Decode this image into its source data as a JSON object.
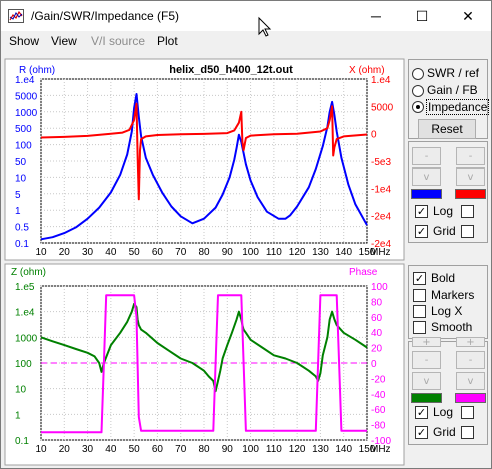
{
  "window": {
    "title": "/Gain/SWR/Impedance (F5)",
    "minimize_glyph": "─",
    "maximize_glyph": "☐",
    "close_glyph": "✕"
  },
  "menu": [
    "Show",
    "View",
    "V/I source",
    "Plot"
  ],
  "top_plot": {
    "title": "helix_d50_h400_12t.out",
    "left_label": "R (ohm)",
    "right_label": "X (ohm)",
    "left_ticks": [
      "1.e4",
      "5000",
      "1000",
      "500",
      "100",
      "50",
      "10",
      "5",
      "1",
      "0.5",
      "0.1"
    ],
    "right_ticks": [
      "1.e4",
      "5000",
      "0",
      "-5e3",
      "-1e4",
      "-2e4",
      "-2e4"
    ],
    "x_ticks": [
      "10",
      "20",
      "30",
      "40",
      "50",
      "60",
      "70",
      "80",
      "90",
      "100",
      "110",
      "120",
      "130",
      "140",
      "150"
    ],
    "x_unit": "MHz"
  },
  "bottom_plot": {
    "left_label": "Z (ohm)",
    "right_label": "Phase",
    "left_ticks": [
      "1.e5",
      "1.e4",
      "1000",
      "100",
      "10",
      "1",
      "0.1"
    ],
    "right_ticks": [
      "100",
      "80",
      "60",
      "40",
      "20",
      "0",
      "-20",
      "-40",
      "-60",
      "-80",
      "-100"
    ],
    "x_ticks": [
      "10",
      "20",
      "30",
      "40",
      "50",
      "60",
      "70",
      "80",
      "90",
      "100",
      "110",
      "120",
      "130",
      "140",
      "150"
    ],
    "x_unit": "MHz"
  },
  "panel_top": {
    "radios": [
      {
        "label": "SWR / ref",
        "selected": false
      },
      {
        "label": "Gain / FB",
        "selected": false
      },
      {
        "label": "Impedance",
        "selected": true
      }
    ],
    "reset_label": "Reset",
    "log_label": "Log",
    "grid_label": "Grid",
    "log_checked": true,
    "log2_checked": false,
    "grid_checked": true,
    "grid2_checked": false,
    "swatch_left_color": "#0000ff",
    "swatch_right_color": "#ff0000"
  },
  "panel_bottom": {
    "options": [
      {
        "label": "Bold",
        "checked": true
      },
      {
        "label": "Markers",
        "checked": false
      },
      {
        "label": "Log X",
        "checked": false
      },
      {
        "label": "Smooth",
        "checked": false
      }
    ],
    "log_label": "Log",
    "grid_label": "Grid",
    "log_checked": true,
    "log2_checked": false,
    "grid_checked": true,
    "grid2_checked": false,
    "swatch_left_color": "#008000",
    "swatch_right_color": "#ff00ff"
  },
  "stepper_glyphs": {
    "up": "-",
    "down": "v",
    "plus": "+"
  },
  "chart_data": [
    {
      "type": "line",
      "title": "helix_d50_h400_12t.out",
      "xlabel": "MHz",
      "ylabel": "R (ohm)",
      "y2label": "X (ohm)",
      "xlim": [
        10,
        150
      ],
      "ylim": [
        0.1,
        10000
      ],
      "y_scale": "log",
      "y2lim": [
        -20000,
        10000
      ],
      "grid": true,
      "series": [
        {
          "name": "R (ohm)",
          "axis": "left",
          "color": "#0000ff",
          "x": [
            10,
            15,
            20,
            25,
            30,
            35,
            40,
            44,
            47,
            49,
            50,
            51,
            52,
            53,
            55,
            58,
            62,
            66,
            70,
            75,
            80,
            85,
            88,
            91,
            93,
            94,
            95,
            96,
            97,
            98,
            100,
            103,
            107,
            112,
            115,
            117,
            120,
            125,
            128,
            131,
            133,
            134,
            135,
            136,
            137,
            139,
            142,
            145,
            150
          ],
          "y": [
            0.13,
            0.15,
            0.2,
            0.3,
            0.55,
            1.2,
            3.5,
            12,
            50,
            250,
            1300,
            3500,
            700,
            180,
            40,
            12,
            3.5,
            1.3,
            0.65,
            0.4,
            0.55,
            1.2,
            3,
            10,
            35,
            80,
            200,
            120,
            55,
            25,
            8,
            2.5,
            0.9,
            0.55,
            0.55,
            0.7,
            1.3,
            5,
            18,
            90,
            350,
            1000,
            2000,
            800,
            250,
            40,
            6,
            1.5,
            0.35
          ]
        },
        {
          "name": "X (ohm)",
          "axis": "right",
          "color": "#ff0000",
          "x": [
            10,
            20,
            30,
            40,
            45,
            48,
            50,
            51,
            51.5,
            52,
            52.5,
            53,
            55,
            60,
            70,
            80,
            90,
            93,
            95,
            96,
            96.5,
            97,
            98,
            100,
            110,
            120,
            130,
            133,
            134,
            135,
            135.5,
            136,
            137,
            140,
            150
          ],
          "y": [
            -700,
            -600,
            -400,
            0,
            200,
            700,
            2500,
            5500,
            -4000,
            -12000,
            -3000,
            -1000,
            -500,
            -250,
            -100,
            -50,
            100,
            600,
            2000,
            4000,
            -1500,
            -3000,
            -800,
            -350,
            -100,
            0,
            400,
            1000,
            2500,
            5000,
            -4000,
            -2500,
            -1000,
            -500,
            -150
          ]
        }
      ]
    },
    {
      "type": "line",
      "xlabel": "MHz",
      "ylabel": "Z (ohm)",
      "y2label": "Phase",
      "xlim": [
        10,
        150
      ],
      "ylim": [
        0.1,
        100000
      ],
      "y_scale": "log",
      "y2lim": [
        -100,
        100
      ],
      "grid": true,
      "series": [
        {
          "name": "Z (ohm)",
          "axis": "left",
          "color": "#008000",
          "x": [
            10,
            15,
            20,
            25,
            30,
            33,
            35,
            36,
            37,
            40,
            44,
            47,
            49,
            50,
            51,
            51.5,
            52,
            53,
            55,
            60,
            65,
            70,
            75,
            80,
            82,
            84,
            85,
            86,
            87,
            88,
            90,
            92,
            94,
            95,
            96,
            96.5,
            97,
            98,
            100,
            105,
            110,
            115,
            120,
            125,
            128,
            129,
            130,
            131,
            133,
            134,
            135,
            136,
            137,
            140,
            145,
            150
          ],
          "y": [
            1000,
            700,
            500,
            350,
            250,
            180,
            100,
            45,
            100,
            500,
            1500,
            4000,
            10000,
            20000,
            15000,
            5000,
            3000,
            2000,
            1500,
            600,
            300,
            150,
            100,
            50,
            30,
            20,
            8,
            20,
            50,
            150,
            500,
            1500,
            5000,
            10000,
            5000,
            3000,
            2000,
            1500,
            800,
            400,
            200,
            150,
            100,
            50,
            30,
            20,
            40,
            200,
            1000,
            5000,
            10000,
            5000,
            3000,
            1500,
            800,
            400
          ]
        },
        {
          "name": "Phase",
          "axis": "right",
          "color": "#ff00ff",
          "x": [
            10,
            36,
            37,
            38,
            50,
            51,
            52,
            53,
            84,
            85,
            86,
            96,
            97,
            98,
            128,
            129,
            130,
            137,
            138,
            139,
            150
          ],
          "y": [
            -90,
            -90,
            0,
            88,
            88,
            60,
            -70,
            -88,
            -88,
            0,
            88,
            88,
            0,
            -88,
            -88,
            0,
            88,
            88,
            0,
            -88,
            -88
          ]
        }
      ]
    }
  ]
}
